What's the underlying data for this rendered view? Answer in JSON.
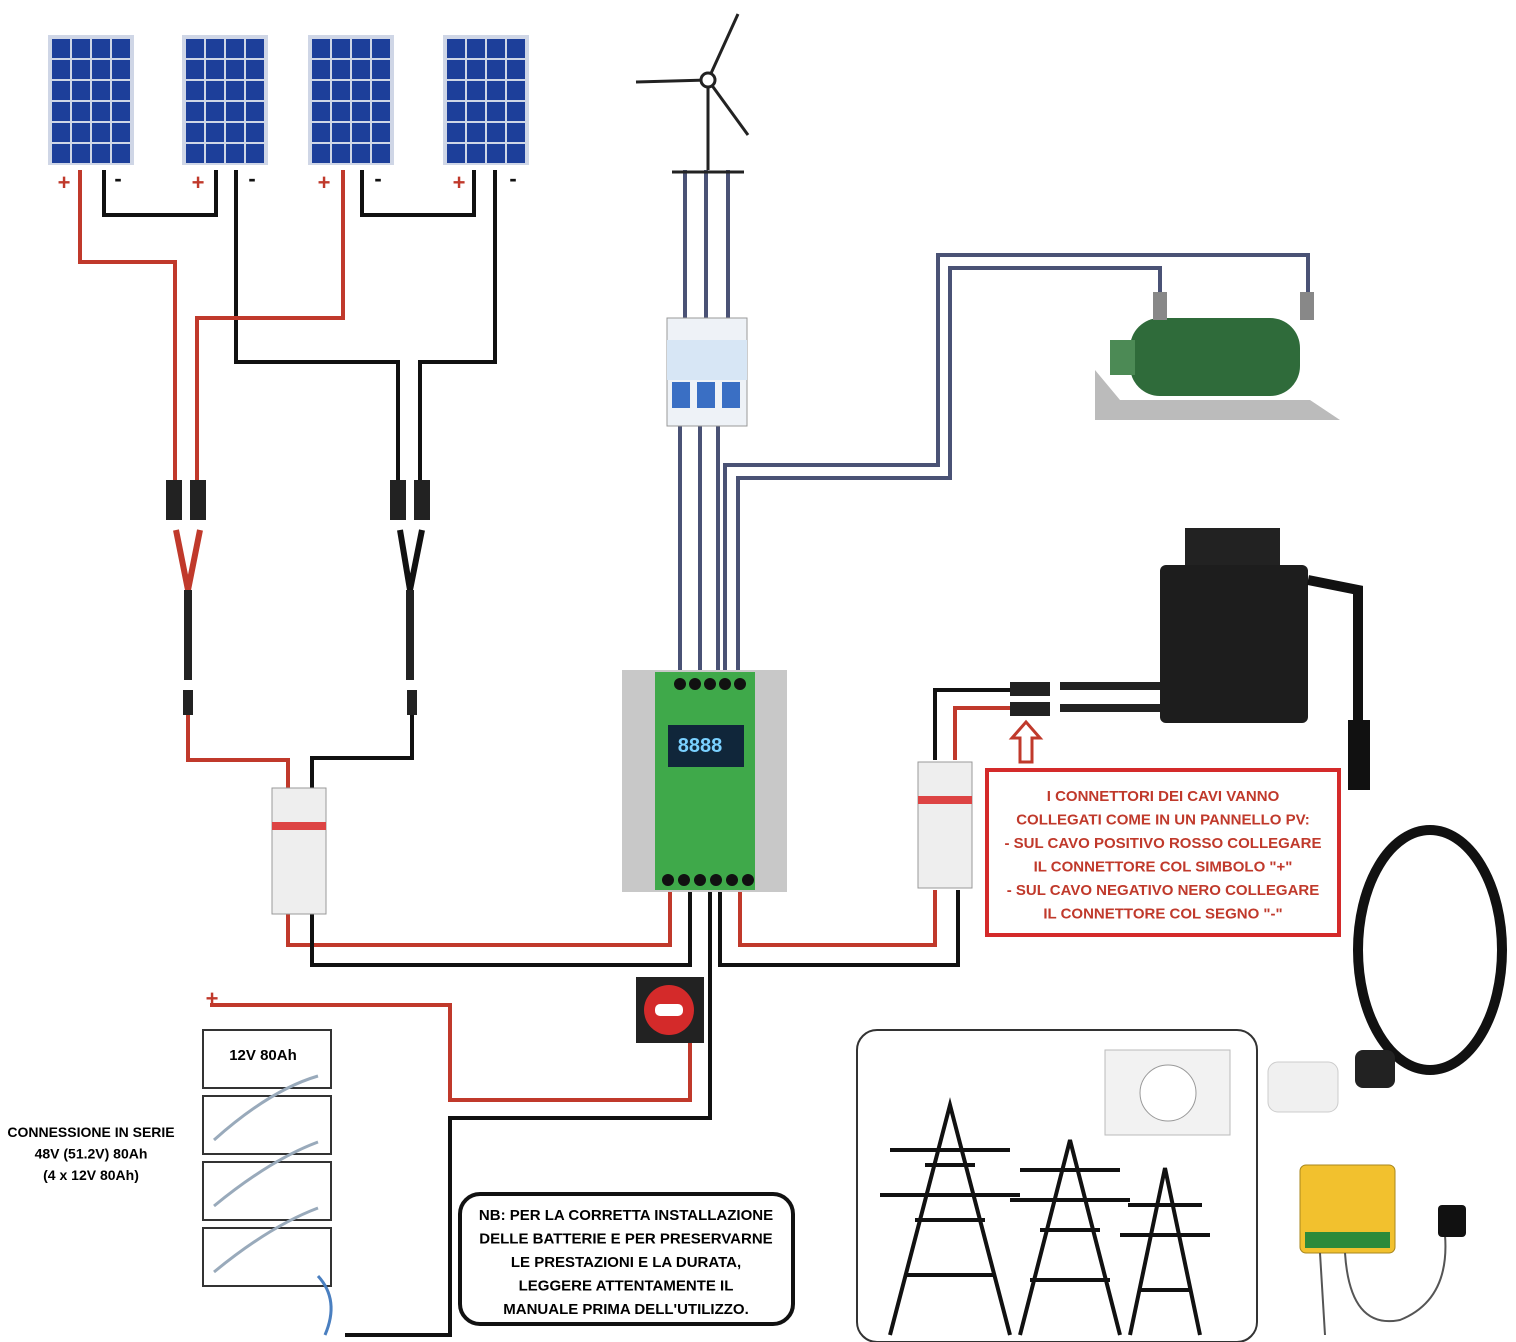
{
  "solar_panels": [
    {
      "plus": "+",
      "minus": "-"
    },
    {
      "plus": "+",
      "minus": "-"
    },
    {
      "plus": "+",
      "minus": "-"
    },
    {
      "plus": "+",
      "minus": "-"
    }
  ],
  "controller": {
    "display": "8888"
  },
  "battery": {
    "terminal": "+",
    "label": "12V 80Ah"
  },
  "series_note": [
    "CONNESSIONE IN SERIE",
    "48V (51.2V) 80Ah",
    "(4 x 12V 80Ah)"
  ],
  "connector_note": [
    "I CONNETTORI DEI CAVI VANNO",
    "COLLEGATI COME IN UN PANNELLO PV:",
    "- SUL CAVO POSITIVO ROSSO COLLEGARE",
    "IL CONNETTORE COL SIMBOLO \"+\"",
    "- SUL CAVO NEGATIVO NERO COLLEGARE",
    "IL CONNETTORE COL SEGNO \"-\""
  ],
  "nb_note": [
    "NB: PER LA CORRETTA INSTALLAZIONE",
    "DELLE BATTERIE E PER PRESERVARNE",
    "LE PRESTAZIONI E LA DURATA,",
    "LEGGERE ATTENTAMENTE IL",
    "MANUALE PRIMA DELL'UTILIZZO."
  ]
}
